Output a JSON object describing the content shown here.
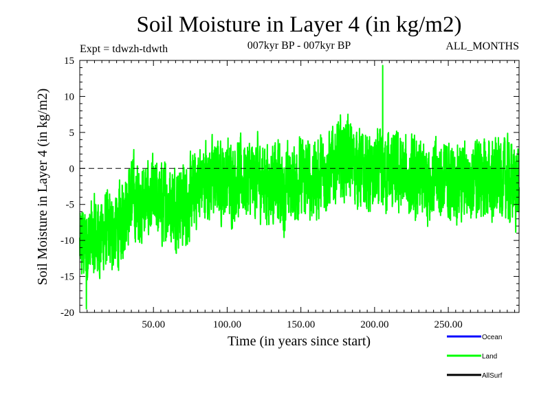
{
  "chart_data": {
    "type": "line",
    "title": "Soil Moisture in Layer 4 (in kg/m2)",
    "subtitle_left": "Expt = tdwzh-tdwth",
    "subtitle_center": "007kyr BP - 007kyr BP",
    "subtitle_right": "ALL_MONTHS",
    "xlabel": "Time (in years since start)",
    "ylabel": "Soil Moisture in Layer 4 (in kg/m2)",
    "xlim": [
      0,
      298
    ],
    "ylim": [
      -20,
      15
    ],
    "x_ticks": [
      50,
      100,
      150,
      200,
      250
    ],
    "x_tick_labels": [
      "50.00",
      "100.00",
      "150.00",
      "200.00",
      "250.00"
    ],
    "y_ticks": [
      -20,
      -15,
      -10,
      -5,
      0,
      5,
      10,
      15
    ],
    "y_tick_labels": [
      "-20",
      "-15",
      "-10",
      "-5",
      "0",
      "5",
      "10",
      "15"
    ],
    "reference_line": 0,
    "legend": [
      {
        "name": "Ocean",
        "color": "#0000ff"
      },
      {
        "name": "Land",
        "color": "#00ff00"
      },
      {
        "name": "AllSurf",
        "color": "#000000"
      }
    ],
    "series": [
      {
        "name": "Land",
        "color": "#00ff00",
        "note": "approximate annual-mean trend of a monthly series (3576 months)",
        "x": [
          1,
          4,
          8,
          12,
          16,
          20,
          25,
          28,
          31,
          35,
          40,
          45,
          50,
          55,
          60,
          65,
          70,
          75,
          78,
          80,
          85,
          90,
          95,
          100,
          105,
          110,
          115,
          120,
          125,
          130,
          135,
          139,
          142,
          145,
          150,
          155,
          160,
          165,
          170,
          175,
          180,
          185,
          190,
          195,
          200,
          205,
          210,
          215,
          220,
          225,
          230,
          235,
          240,
          245,
          250,
          255,
          260,
          265,
          270,
          275,
          280,
          285,
          290,
          295,
          298
        ],
        "values": [
          -11,
          -10.5,
          -10,
          -9.5,
          -9,
          -9,
          -8.5,
          -8,
          -5,
          -4,
          -5,
          -4.5,
          -4.5,
          -5,
          -4.5,
          -5,
          -5,
          -4.5,
          -3.5,
          -2,
          -1.5,
          -1.5,
          -1.5,
          -1.5,
          -1.5,
          -1.5,
          -1.5,
          -1.5,
          -1.5,
          -2,
          -2,
          -3.5,
          -2,
          -2,
          -1.5,
          -1.5,
          -1.5,
          -1,
          0,
          1,
          1.5,
          1,
          0,
          -1,
          -1,
          -0.5,
          -0.5,
          -1,
          -1,
          -2,
          -2,
          -1.5,
          -1.5,
          -1.5,
          -2,
          -1.5,
          -2,
          -1.5,
          -1.5,
          -1.5,
          -1.5,
          -1.5,
          -1.5,
          -2,
          -3
        ]
      }
    ],
    "plotted_extremes": {
      "max": 14.3,
      "max_x": 205.5,
      "min": -19.5,
      "min_x": 4.5
    }
  }
}
